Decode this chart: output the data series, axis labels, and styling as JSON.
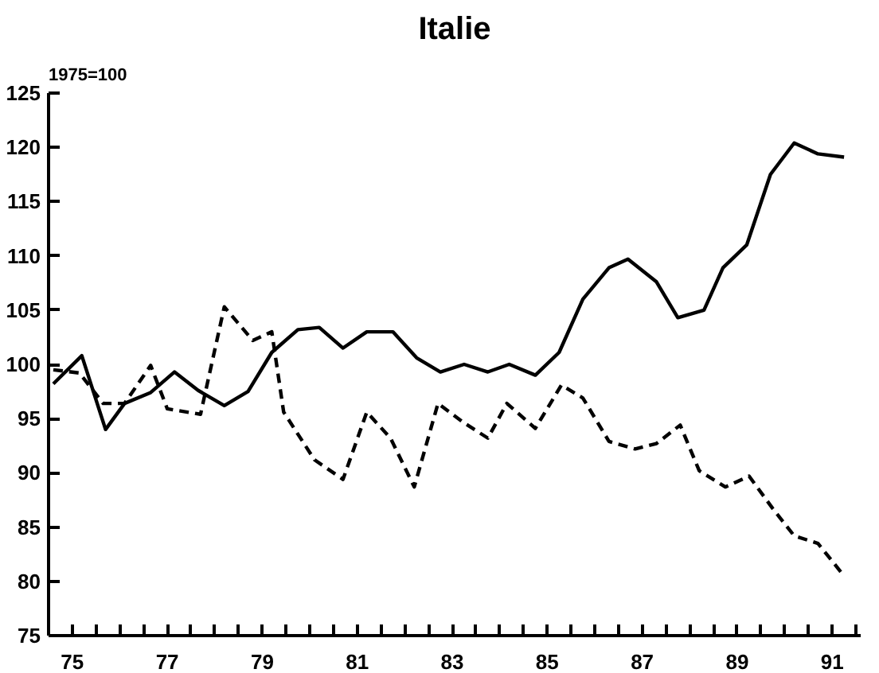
{
  "chart_data": {
    "type": "line",
    "title": "Italie",
    "ylabel": "1975=100",
    "xlim": [
      74.5,
      91.6
    ],
    "ylim": [
      75,
      125
    ],
    "xticks": [
      75,
      {
        "value": 75.5,
        "label": null
      },
      {
        "value": 76,
        "label": null
      },
      {
        "value": 76.5,
        "label": null
      },
      77,
      {
        "value": 77.5,
        "label": null
      },
      {
        "value": 78,
        "label": null
      },
      {
        "value": 78.5,
        "label": null
      },
      79,
      {
        "value": 79.5,
        "label": null
      },
      {
        "value": 80,
        "label": null
      },
      {
        "value": 80.5,
        "label": null
      },
      81,
      {
        "value": 81.5,
        "label": null
      },
      {
        "value": 82,
        "label": null
      },
      {
        "value": 82.5,
        "label": null
      },
      83,
      {
        "value": 83.5,
        "label": null
      },
      {
        "value": 84,
        "label": null
      },
      {
        "value": 84.5,
        "label": null
      },
      85,
      {
        "value": 85.5,
        "label": null
      },
      {
        "value": 86,
        "label": null
      },
      {
        "value": 86.5,
        "label": null
      },
      87,
      {
        "value": 87.5,
        "label": null
      },
      {
        "value": 88,
        "label": null
      },
      {
        "value": 88.5,
        "label": null
      },
      89,
      {
        "value": 89.5,
        "label": null
      },
      {
        "value": 90,
        "label": null
      },
      {
        "value": 90.5,
        "label": null
      },
      91,
      {
        "value": 91.5,
        "label": null
      }
    ],
    "yticks": [
      75,
      80,
      85,
      90,
      95,
      100,
      105,
      110,
      115,
      120,
      125
    ],
    "grid": false,
    "series": [
      {
        "color": "#000000",
        "line_style": "solid",
        "x": [
          74.6,
          75.2,
          75.7,
          76.1,
          76.65,
          77.15,
          77.65,
          78.2,
          78.7,
          79.2,
          79.75,
          80.2,
          80.7,
          81.2,
          81.75,
          82.25,
          82.75,
          83.25,
          83.75,
          84.2,
          84.75,
          85.25,
          85.75,
          86.3,
          86.7,
          87.3,
          87.75,
          88.3,
          88.7,
          89.2,
          89.7,
          90.2,
          90.7,
          91.25
        ],
        "values": [
          98.2,
          100.8,
          94.0,
          96.4,
          97.4,
          99.3,
          97.6,
          96.2,
          97.5,
          101.1,
          103.2,
          103.4,
          101.5,
          103.0,
          103.0,
          100.6,
          99.3,
          100.0,
          99.3,
          100.0,
          99.0,
          101.1,
          106.0,
          108.9,
          109.7,
          107.6,
          104.3,
          105.0,
          108.9,
          111.0,
          117.5,
          120.4,
          119.4,
          119.1
        ]
      },
      {
        "color": "#000000",
        "line_style": "dashed",
        "x": [
          74.6,
          75.15,
          75.65,
          76.1,
          76.65,
          77.0,
          77.7,
          78.2,
          78.8,
          79.2,
          79.45,
          80.1,
          80.7,
          81.2,
          81.7,
          82.2,
          82.7,
          83.25,
          83.75,
          84.15,
          84.75,
          85.3,
          85.75,
          86.3,
          86.85,
          87.3,
          87.8,
          88.2,
          88.75,
          89.25,
          89.75,
          90.2,
          90.7,
          91.25
        ],
        "values": [
          99.5,
          99.2,
          96.4,
          96.4,
          99.9,
          95.9,
          95.4,
          105.3,
          102.2,
          103.0,
          95.6,
          91.2,
          89.4,
          95.6,
          93.2,
          88.7,
          96.4,
          94.6,
          93.2,
          96.4,
          94.1,
          98.1,
          96.9,
          92.9,
          92.2,
          92.7,
          94.4,
          90.2,
          88.7,
          89.7,
          86.7,
          84.2,
          83.5,
          80.5
        ]
      }
    ]
  }
}
